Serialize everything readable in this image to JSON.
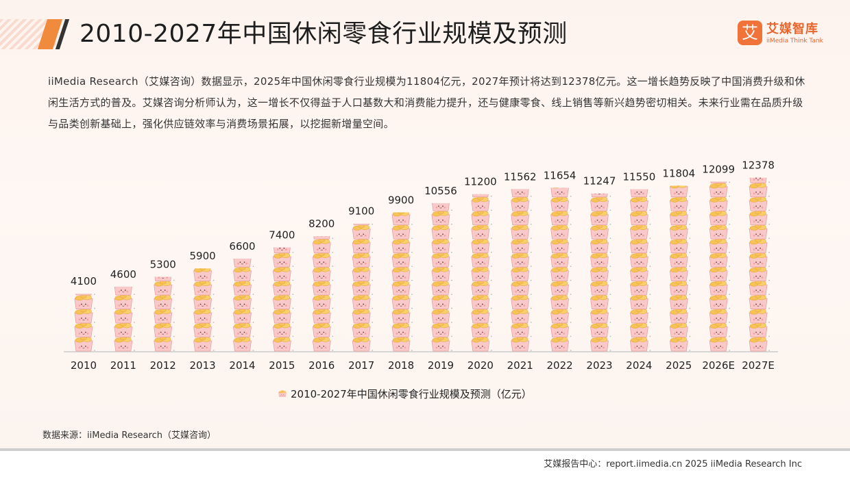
{
  "header": {
    "title": "2010-2027年中国休闲零食行业规模及预测",
    "logo_cn": "艾媒智库",
    "logo_en": "iiMedia Think Tank",
    "logo_mark": "艾"
  },
  "intro": "iiMedia Research（艾媒咨询）数据显示，2025年中国休闲零食行业规模为11804亿元，2027年预计将达到12378亿元。这一增长趋势反映了中国消费升级和休闲生活方式的普及。艾媒咨询分析师认为，这一增长不仅得益于人口基数大和消费能力提升，还与健康零食、线上销售等新兴趋势密切相关。未来行业需在品质升级与品类创新基础上，强化供应链效率与消费场景拓展，以挖掘新增量空间。",
  "chart_data": {
    "type": "bar",
    "title": "2010-2027年中国休闲零食行业规模及预测（亿元）",
    "categories": [
      "2010",
      "2011",
      "2012",
      "2013",
      "2014",
      "2015",
      "2016",
      "2017",
      "2018",
      "2019",
      "2020",
      "2021",
      "2022",
      "2023",
      "2024",
      "2025",
      "2026E",
      "2027E"
    ],
    "values": [
      4100,
      4600,
      5300,
      5900,
      6600,
      7400,
      8200,
      9100,
      9900,
      10556,
      11200,
      11562,
      11654,
      11247,
      11550,
      11804,
      12099,
      12378
    ],
    "ylim": [
      0,
      12700
    ],
    "grid": false,
    "bar_style": "pictogram-snack-cups",
    "colors": {
      "cup": "#f9c9c9",
      "cup_edge": "#e9a0a0",
      "chips": "#f6c358",
      "axis": "#cccccc"
    }
  },
  "source": "数据来源：iiMedia Research（艾媒咨询）",
  "footer": "艾媒报告中心：report.iimedia.cn   2025 iiMedia Research Inc"
}
